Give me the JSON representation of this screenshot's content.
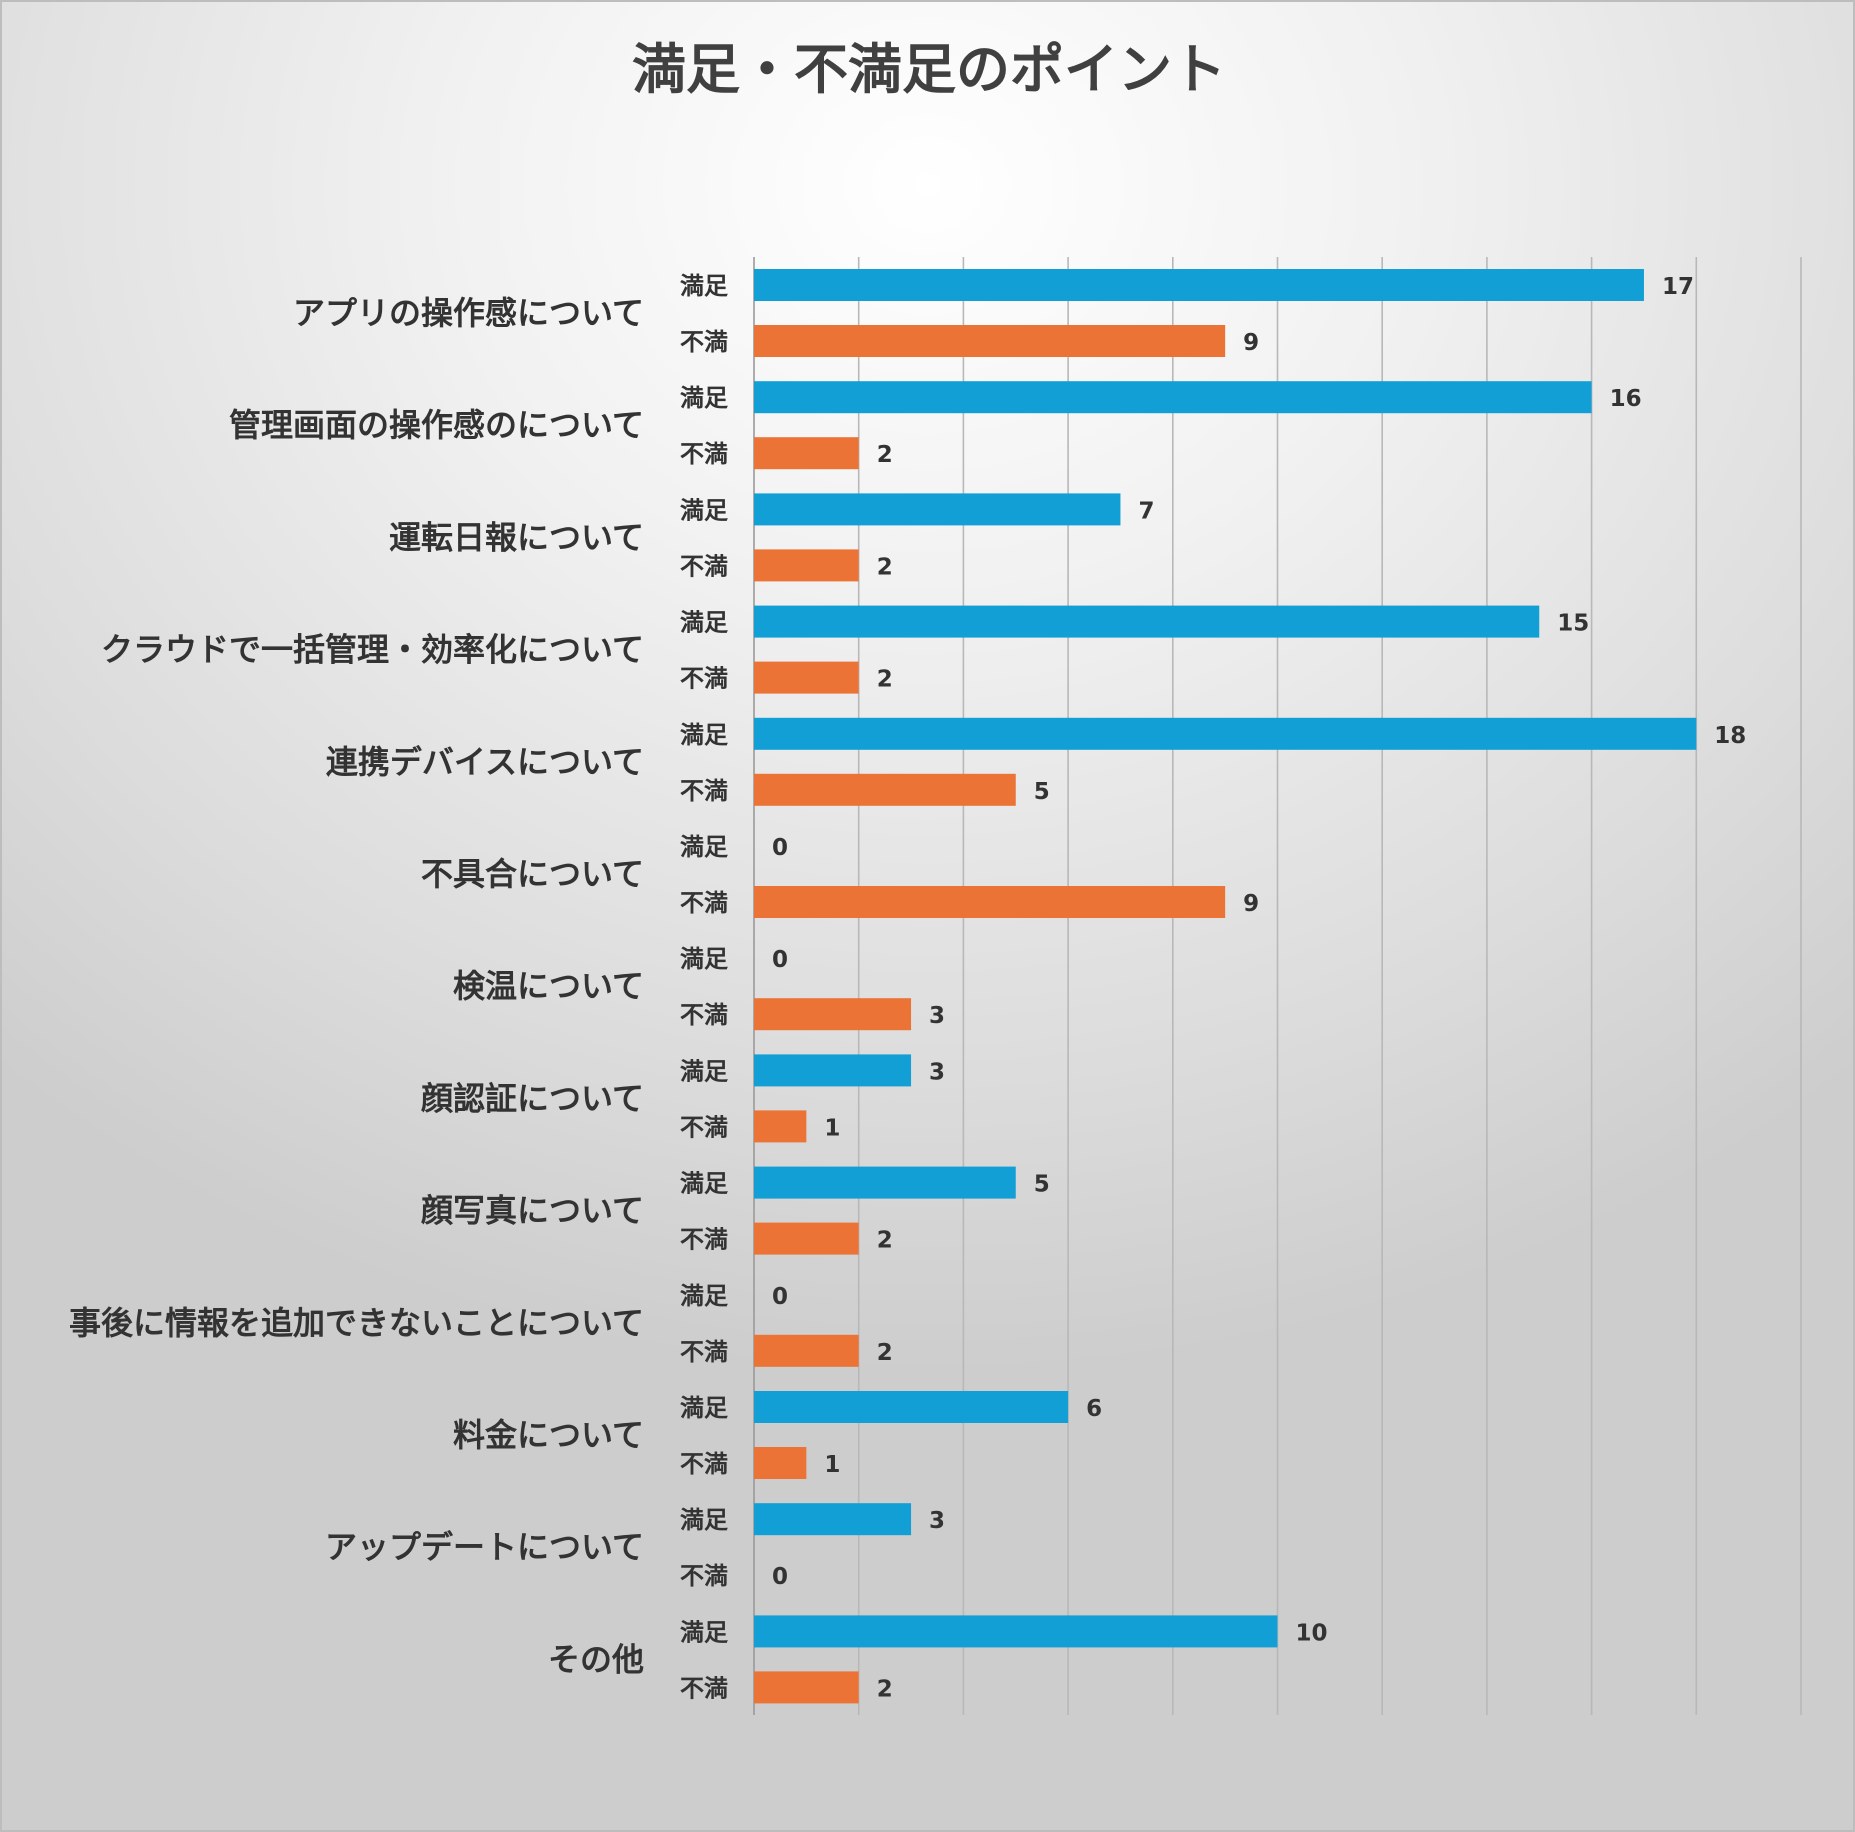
{
  "chart_data": {
    "type": "bar",
    "orientation": "horizontal",
    "title": "満足・不満足のポイント",
    "categories": [
      "アプリの操作感について",
      "管理画面の操作感のについて",
      "運転日報について",
      "クラウドで一括管理・効率化について",
      "連携デバイスについて",
      "不具合について",
      "検温について",
      "顔認証について",
      "顔写真について",
      "事後に情報を追加できないことについて",
      "料金について",
      "アップデートについて",
      "その他"
    ],
    "series": [
      {
        "name": "満足",
        "color": "#119fd6",
        "values": [
          17,
          16,
          7,
          15,
          18,
          0,
          0,
          3,
          5,
          0,
          6,
          3,
          10
        ]
      },
      {
        "name": "不満",
        "color": "#eb7335",
        "values": [
          9,
          2,
          2,
          2,
          5,
          9,
          3,
          1,
          2,
          2,
          1,
          0,
          2
        ]
      }
    ],
    "xlim": [
      0,
      20
    ],
    "x_gridlines": true,
    "x_tick_labels_shown": false,
    "data_labels": true,
    "legend": "none"
  }
}
